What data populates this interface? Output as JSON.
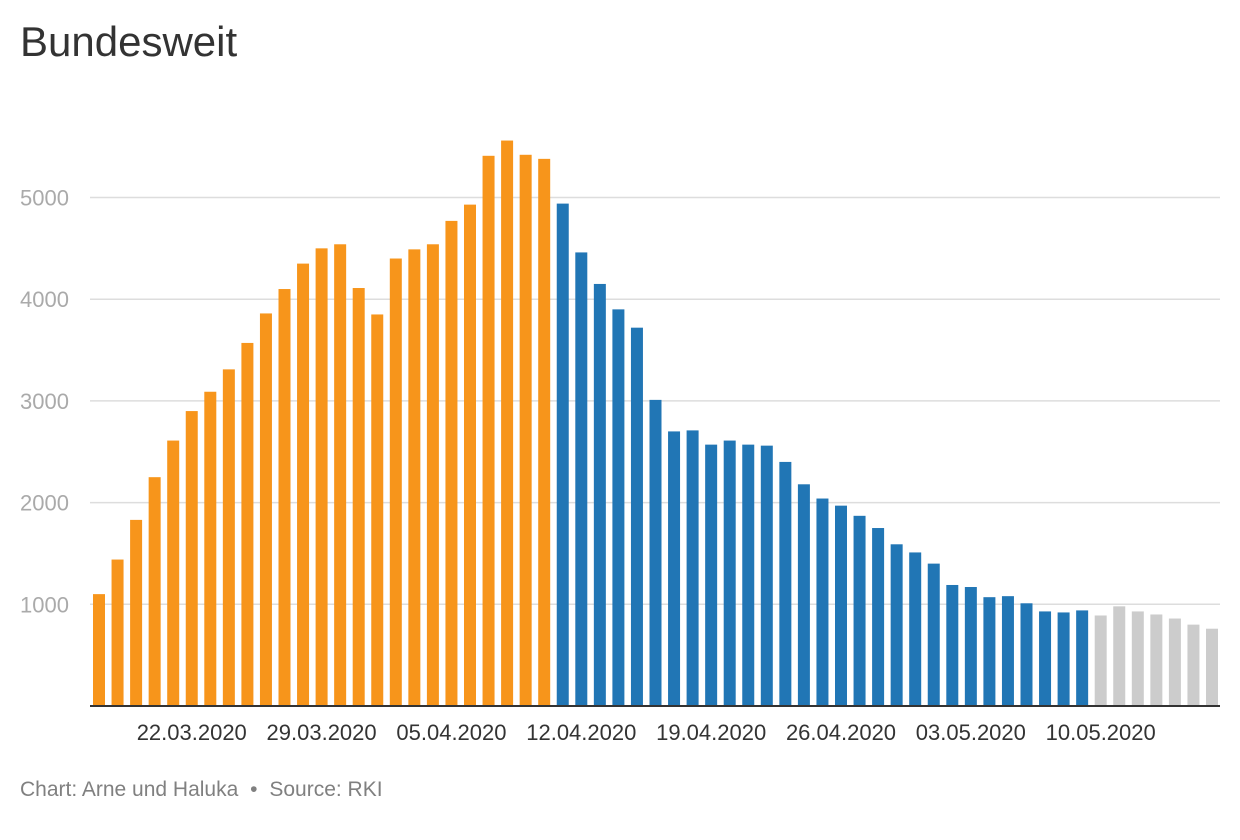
{
  "title": "Bundesweit",
  "footer": {
    "credit": "Chart: Arne und Haluka",
    "separator": "•",
    "source": "Source: RKI"
  },
  "colors": {
    "segment_1": "#F7951B",
    "segment_2": "#2176B5",
    "segment_3": "#CCCCCC",
    "gridline": "#DDDDDD",
    "axis": "#333333",
    "y_tick_text": "#AAAAAA",
    "x_tick_text": "#333333"
  },
  "chart_data": {
    "type": "bar",
    "ylim": [
      0,
      5600
    ],
    "grid": true,
    "y_ticks": [
      1000,
      2000,
      3000,
      4000,
      5000
    ],
    "x_tick_labels": [
      "22.03.2020",
      "29.03.2020",
      "05.04.2020",
      "12.04.2020",
      "19.04.2020",
      "26.04.2020",
      "03.05.2020",
      "10.05.2020"
    ],
    "first_date": "2020-03-17",
    "values": [
      1100,
      1440,
      1830,
      2250,
      2610,
      2900,
      3090,
      3310,
      3570,
      3860,
      4100,
      4350,
      4500,
      4540,
      4110,
      3850,
      4400,
      4490,
      4540,
      4770,
      4930,
      5410,
      5560,
      5420,
      5380,
      4940,
      4460,
      4150,
      3900,
      3720,
      3010,
      2700,
      2710,
      2570,
      2610,
      2570,
      2560,
      2400,
      2180,
      2040,
      1970,
      1870,
      1750,
      1590,
      1510,
      1400,
      1190,
      1170,
      1070,
      1080,
      1010,
      930,
      920,
      940,
      890,
      980,
      930,
      900,
      860,
      800,
      760
    ],
    "segments": [
      {
        "color_key": "segment_1",
        "start": 0,
        "end": 24
      },
      {
        "color_key": "segment_2",
        "start": 25,
        "end": 53
      },
      {
        "color_key": "segment_3",
        "start": 54,
        "end": 60
      }
    ]
  }
}
